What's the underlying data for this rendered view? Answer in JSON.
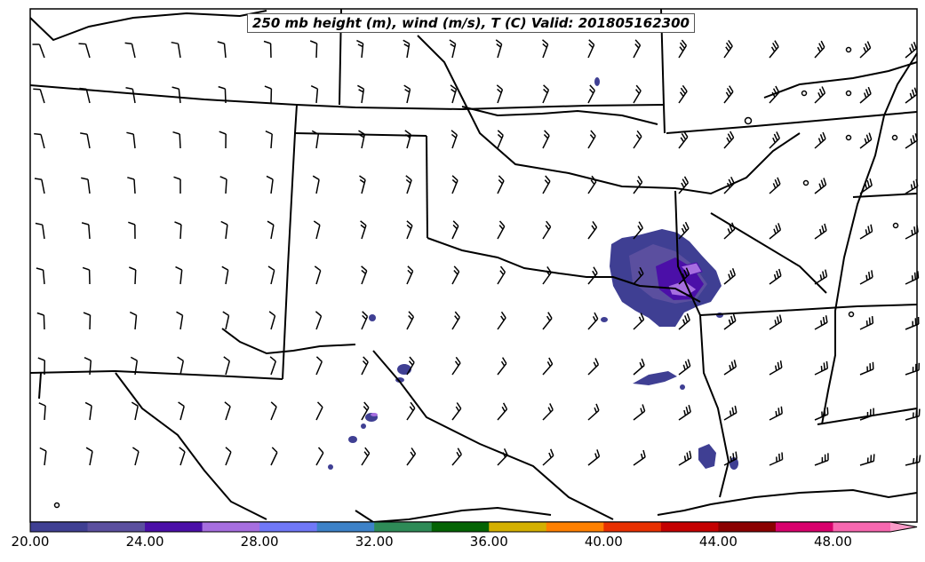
{
  "title": "250 mb height (m), wind (m/s), T (C) Valid: 201805162300",
  "colorbar": {
    "colors": [
      "#3f3f93",
      "#5b4f9f",
      "#4b0fa8",
      "#a66ee0",
      "#7078f8",
      "#3d82c8",
      "#2e8b57",
      "#046404",
      "#d4b000",
      "#ff8000",
      "#e83000",
      "#c40000",
      "#8b0000",
      "#d8006c",
      "#f868b0",
      "#f99bc8"
    ],
    "tick_labels": [
      "20.00",
      "24.00",
      "28.00",
      "32.00",
      "36.00",
      "40.00",
      "44.00",
      "48.00"
    ]
  },
  "shaded_field": {
    "label": "wind speed (m/s)",
    "regions": [
      "main-storm-blob",
      "central-oklahoma-patch",
      "southeast-arkansas-band"
    ]
  },
  "layers": [
    "state-boundaries",
    "coastline",
    "rivers",
    "wind-barbs"
  ]
}
